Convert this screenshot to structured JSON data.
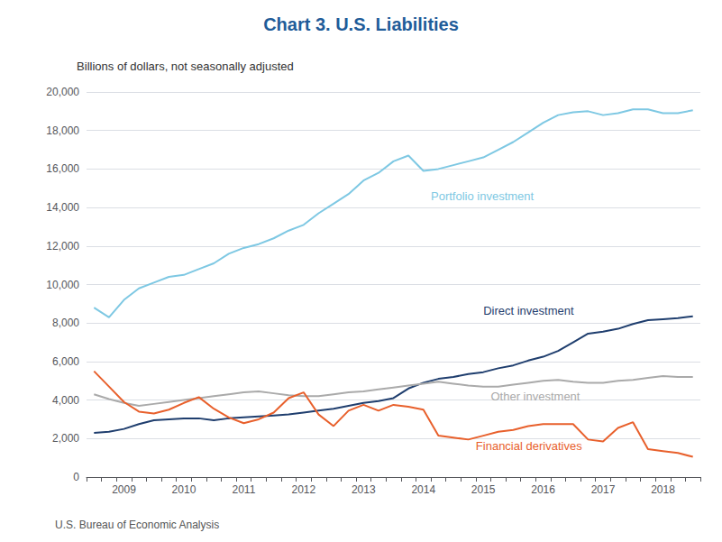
{
  "chart_data": {
    "type": "line",
    "title": "Chart 3. U.S. Liabilities",
    "subtitle": "Billions of dollars, not seasonally adjusted",
    "footnote": "U.S. Bureau of Economic Analysis",
    "title_color": "#1F5C99",
    "categories": [
      null,
      null,
      "2009",
      null,
      null,
      null,
      "2010",
      null,
      null,
      null,
      "2011",
      null,
      null,
      null,
      "2012",
      null,
      null,
      null,
      "2013",
      null,
      null,
      null,
      "2014",
      null,
      null,
      null,
      "2015",
      null,
      null,
      null,
      "2016",
      null,
      null,
      null,
      "2017",
      null,
      null,
      null,
      "2018",
      null,
      null
    ],
    "series": [
      {
        "name": "Portfolio investment",
        "color": "#7EC8E3",
        "values": [
          8800,
          8300,
          9200,
          9800,
          10100,
          10400,
          10500,
          10800,
          11100,
          11600,
          11900,
          12100,
          12400,
          12800,
          13100,
          13700,
          14200,
          14700,
          15400,
          15800,
          16400,
          16700,
          15900,
          16000,
          16200,
          16400,
          16600,
          17000,
          17400,
          17900,
          18400,
          18800,
          18950,
          19000,
          18800,
          18900,
          19100,
          19100,
          18900,
          18900,
          19050
        ]
      },
      {
        "name": "Direct investment",
        "color": "#1F3E6E",
        "values": [
          2300,
          2350,
          2500,
          2750,
          2950,
          3000,
          3050,
          3050,
          2950,
          3050,
          3100,
          3150,
          3200,
          3250,
          3350,
          3450,
          3550,
          3700,
          3850,
          3950,
          4100,
          4600,
          4900,
          5100,
          5200,
          5350,
          5450,
          5650,
          5800,
          6050,
          6250,
          6550,
          7000,
          7450,
          7550,
          7700,
          7950,
          8150,
          8200,
          8250,
          8350
        ]
      },
      {
        "name": "Other investment",
        "color": "#AAAAAA",
        "values": [
          4300,
          4050,
          3850,
          3700,
          3800,
          3900,
          4000,
          4100,
          4200,
          4300,
          4400,
          4450,
          4350,
          4250,
          4200,
          4200,
          4300,
          4400,
          4450,
          4550,
          4650,
          4750,
          4850,
          4950,
          4850,
          4750,
          4700,
          4700,
          4800,
          4900,
          5000,
          5050,
          4950,
          4900,
          4900,
          5000,
          5050,
          5150,
          5250,
          5200,
          5200
        ]
      },
      {
        "name": "Financial derivatives",
        "color": "#E8602C",
        "values": [
          5500,
          4700,
          3900,
          3400,
          3300,
          3500,
          3850,
          4150,
          3550,
          3100,
          2800,
          3000,
          3350,
          4100,
          4400,
          3250,
          2650,
          3450,
          3750,
          3450,
          3750,
          3650,
          3500,
          2150,
          2050,
          1950,
          2150,
          2350,
          2450,
          2650,
          2750,
          2750,
          2750,
          1950,
          1850,
          2550,
          2850,
          1450,
          1350,
          1250,
          1050
        ]
      }
    ],
    "ylim": [
      0,
      20000
    ],
    "yticks": [
      0,
      {
        "value": 2000,
        "label": "2,000"
      },
      {
        "value": 4000,
        "label": "4,000"
      },
      {
        "value": 6000,
        "label": "6,000"
      },
      {
        "value": 8000,
        "label": "8,000"
      },
      {
        "value": 10000,
        "label": "10,000"
      },
      {
        "value": 12000,
        "label": "12,000"
      },
      {
        "value": 14000,
        "label": "14,000"
      },
      {
        "value": 16000,
        "label": "16,000"
      },
      {
        "value": 18000,
        "label": "18,000"
      },
      {
        "value": 20000,
        "label": "20,000"
      }
    ],
    "grid": true,
    "annotations": [
      {
        "text": "Portfolio investment",
        "x": 22.5,
        "y": 14600,
        "color": "#7EC8E3"
      },
      {
        "text": "Direct investment",
        "x": 26,
        "y": 8650,
        "color": "#1F3E6E"
      },
      {
        "text": "Other investment",
        "x": 26.5,
        "y": 4200,
        "color": "#AAAAAA"
      },
      {
        "text": "Financial derivatives",
        "x": 25.5,
        "y": 1600,
        "color": "#E8602C"
      }
    ]
  }
}
